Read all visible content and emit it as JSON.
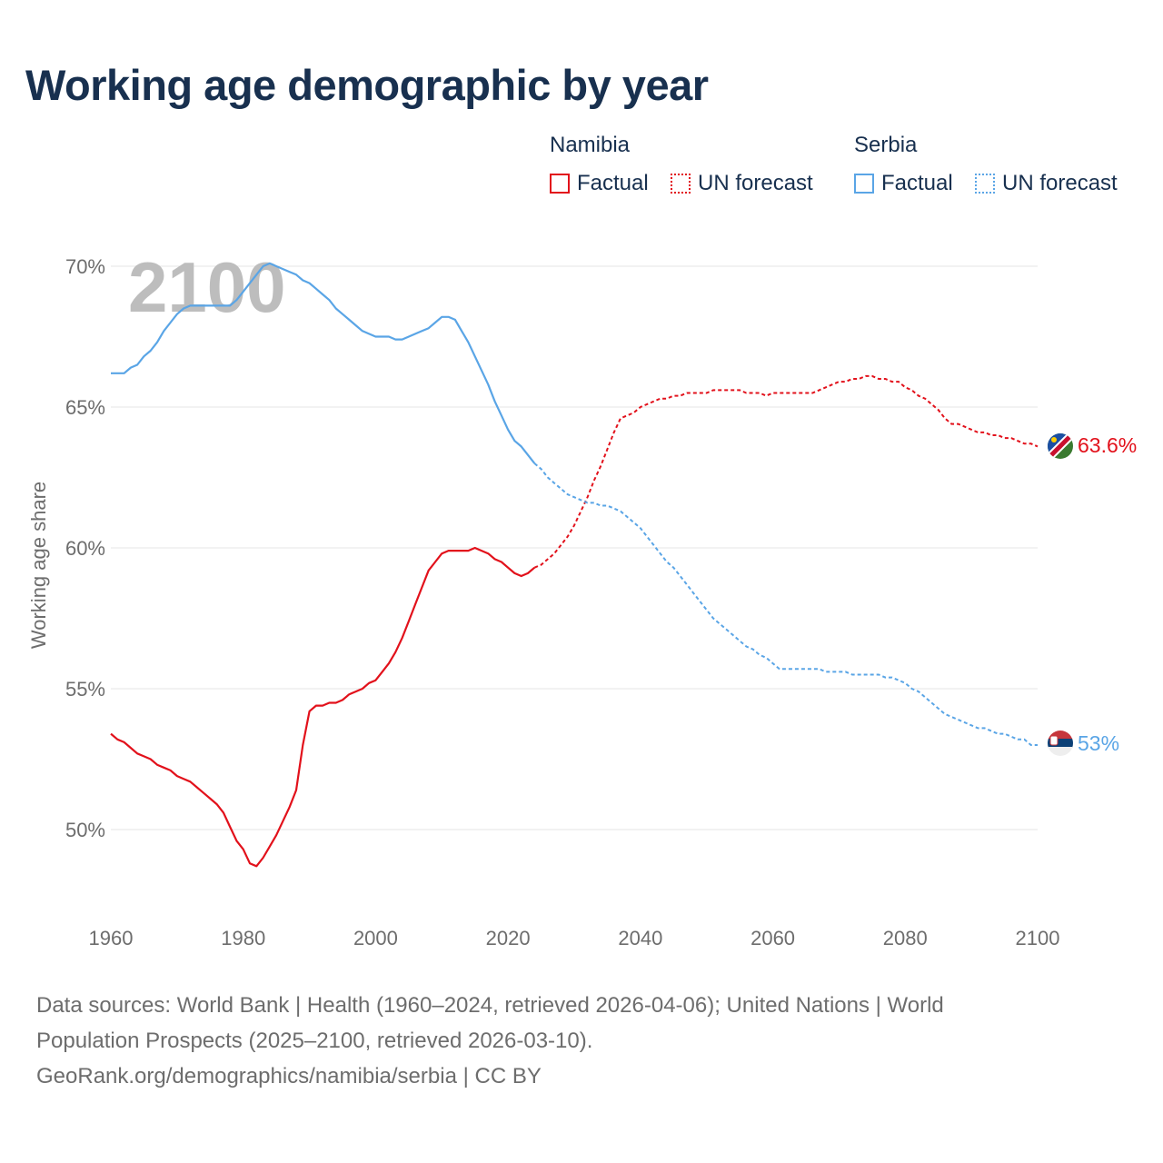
{
  "title": "Working age demographic by year",
  "year_watermark": "2100",
  "legend": {
    "groups": [
      {
        "name": "Namibia",
        "factual": "Factual",
        "forecast": "UN forecast",
        "color": "#e2111b"
      },
      {
        "name": "Serbia",
        "factual": "Factual",
        "forecast": "UN forecast",
        "color": "#5aa5e6"
      }
    ]
  },
  "end_labels": {
    "namibia": "63.6%",
    "serbia": "53%"
  },
  "source": {
    "line1": "Data sources: World Bank | Health (1960–2024, retrieved 2026-04-06); United Nations | World",
    "line2": "Population Prospects (2025–2100, retrieved 2026-03-10).",
    "line3": "GeoRank.org/demographics/namibia/serbia | CC BY"
  },
  "chart_data": {
    "type": "line",
    "title": "Working age demographic by year",
    "ylabel": "Working age share",
    "xlabel": "",
    "xlim": [
      1960,
      2100
    ],
    "ylim": [
      47,
      71.5
    ],
    "x_ticks": [
      1960,
      1980,
      2000,
      2020,
      2040,
      2060,
      2080,
      2100
    ],
    "y_ticks": [
      {
        "value": 50,
        "label": "50%"
      },
      {
        "value": 55,
        "label": "55%"
      },
      {
        "value": 60,
        "label": "60%"
      },
      {
        "value": 65,
        "label": "65%"
      },
      {
        "value": 70,
        "label": "70%"
      }
    ],
    "factual_end_year": 2024,
    "series": [
      {
        "name": "Namibia",
        "color": "#e2111b",
        "points": [
          [
            1960,
            53.4
          ],
          [
            1961,
            53.2
          ],
          [
            1962,
            53.1
          ],
          [
            1963,
            52.9
          ],
          [
            1964,
            52.7
          ],
          [
            1965,
            52.6
          ],
          [
            1966,
            52.5
          ],
          [
            1967,
            52.3
          ],
          [
            1968,
            52.2
          ],
          [
            1969,
            52.1
          ],
          [
            1970,
            51.9
          ],
          [
            1971,
            51.8
          ],
          [
            1972,
            51.7
          ],
          [
            1973,
            51.5
          ],
          [
            1974,
            51.3
          ],
          [
            1975,
            51.1
          ],
          [
            1976,
            50.9
          ],
          [
            1977,
            50.6
          ],
          [
            1978,
            50.1
          ],
          [
            1979,
            49.6
          ],
          [
            1980,
            49.3
          ],
          [
            1981,
            48.8
          ],
          [
            1982,
            48.7
          ],
          [
            1983,
            49.0
          ],
          [
            1984,
            49.4
          ],
          [
            1985,
            49.8
          ],
          [
            1986,
            50.3
          ],
          [
            1987,
            50.8
          ],
          [
            1988,
            51.4
          ],
          [
            1989,
            53.0
          ],
          [
            1990,
            54.2
          ],
          [
            1991,
            54.4
          ],
          [
            1992,
            54.4
          ],
          [
            1993,
            54.5
          ],
          [
            1994,
            54.5
          ],
          [
            1995,
            54.6
          ],
          [
            1996,
            54.8
          ],
          [
            1997,
            54.9
          ],
          [
            1998,
            55.0
          ],
          [
            1999,
            55.2
          ],
          [
            2000,
            55.3
          ],
          [
            2001,
            55.6
          ],
          [
            2002,
            55.9
          ],
          [
            2003,
            56.3
          ],
          [
            2004,
            56.8
          ],
          [
            2005,
            57.4
          ],
          [
            2006,
            58.0
          ],
          [
            2007,
            58.6
          ],
          [
            2008,
            59.2
          ],
          [
            2009,
            59.5
          ],
          [
            2010,
            59.8
          ],
          [
            2011,
            59.9
          ],
          [
            2012,
            59.9
          ],
          [
            2013,
            59.9
          ],
          [
            2014,
            59.9
          ],
          [
            2015,
            60.0
          ],
          [
            2016,
            59.9
          ],
          [
            2017,
            59.8
          ],
          [
            2018,
            59.6
          ],
          [
            2019,
            59.5
          ],
          [
            2020,
            59.3
          ],
          [
            2021,
            59.1
          ],
          [
            2022,
            59.0
          ],
          [
            2023,
            59.1
          ],
          [
            2024,
            59.3
          ],
          [
            2025,
            59.4
          ],
          [
            2026,
            59.6
          ],
          [
            2027,
            59.8
          ],
          [
            2028,
            60.1
          ],
          [
            2029,
            60.4
          ],
          [
            2030,
            60.8
          ],
          [
            2031,
            61.3
          ],
          [
            2032,
            61.8
          ],
          [
            2033,
            62.4
          ],
          [
            2034,
            62.9
          ],
          [
            2035,
            63.5
          ],
          [
            2036,
            64.1
          ],
          [
            2037,
            64.6
          ],
          [
            2038,
            64.7
          ],
          [
            2039,
            64.8
          ],
          [
            2040,
            65.0
          ],
          [
            2041,
            65.1
          ],
          [
            2042,
            65.2
          ],
          [
            2043,
            65.3
          ],
          [
            2044,
            65.3
          ],
          [
            2045,
            65.4
          ],
          [
            2046,
            65.4
          ],
          [
            2047,
            65.5
          ],
          [
            2048,
            65.5
          ],
          [
            2049,
            65.5
          ],
          [
            2050,
            65.5
          ],
          [
            2051,
            65.6
          ],
          [
            2052,
            65.6
          ],
          [
            2053,
            65.6
          ],
          [
            2054,
            65.6
          ],
          [
            2055,
            65.6
          ],
          [
            2056,
            65.5
          ],
          [
            2057,
            65.5
          ],
          [
            2058,
            65.5
          ],
          [
            2059,
            65.4
          ],
          [
            2060,
            65.5
          ],
          [
            2061,
            65.5
          ],
          [
            2062,
            65.5
          ],
          [
            2063,
            65.5
          ],
          [
            2064,
            65.5
          ],
          [
            2065,
            65.5
          ],
          [
            2066,
            65.5
          ],
          [
            2067,
            65.6
          ],
          [
            2068,
            65.7
          ],
          [
            2069,
            65.8
          ],
          [
            2070,
            65.9
          ],
          [
            2071,
            65.9
          ],
          [
            2072,
            66.0
          ],
          [
            2073,
            66.0
          ],
          [
            2074,
            66.1
          ],
          [
            2075,
            66.1
          ],
          [
            2076,
            66.0
          ],
          [
            2077,
            66.0
          ],
          [
            2078,
            65.9
          ],
          [
            2079,
            65.9
          ],
          [
            2080,
            65.7
          ],
          [
            2081,
            65.6
          ],
          [
            2082,
            65.4
          ],
          [
            2083,
            65.3
          ],
          [
            2084,
            65.1
          ],
          [
            2085,
            64.9
          ],
          [
            2086,
            64.6
          ],
          [
            2087,
            64.4
          ],
          [
            2088,
            64.4
          ],
          [
            2089,
            64.3
          ],
          [
            2090,
            64.2
          ],
          [
            2091,
            64.1
          ],
          [
            2092,
            64.1
          ],
          [
            2093,
            64.0
          ],
          [
            2094,
            64.0
          ],
          [
            2095,
            63.9
          ],
          [
            2096,
            63.9
          ],
          [
            2097,
            63.8
          ],
          [
            2098,
            63.7
          ],
          [
            2099,
            63.7
          ],
          [
            2100,
            63.6
          ]
        ]
      },
      {
        "name": "Serbia",
        "color": "#5aa5e6",
        "points": [
          [
            1960,
            66.2
          ],
          [
            1961,
            66.2
          ],
          [
            1962,
            66.2
          ],
          [
            1963,
            66.4
          ],
          [
            1964,
            66.5
          ],
          [
            1965,
            66.8
          ],
          [
            1966,
            67.0
          ],
          [
            1967,
            67.3
          ],
          [
            1968,
            67.7
          ],
          [
            1969,
            68.0
          ],
          [
            1970,
            68.3
          ],
          [
            1971,
            68.5
          ],
          [
            1972,
            68.6
          ],
          [
            1973,
            68.6
          ],
          [
            1974,
            68.6
          ],
          [
            1975,
            68.6
          ],
          [
            1976,
            68.6
          ],
          [
            1977,
            68.6
          ],
          [
            1978,
            68.6
          ],
          [
            1979,
            68.8
          ],
          [
            1980,
            69.1
          ],
          [
            1981,
            69.4
          ],
          [
            1982,
            69.7
          ],
          [
            1983,
            70.0
          ],
          [
            1984,
            70.1
          ],
          [
            1985,
            70.0
          ],
          [
            1986,
            69.9
          ],
          [
            1987,
            69.8
          ],
          [
            1988,
            69.7
          ],
          [
            1989,
            69.5
          ],
          [
            1990,
            69.4
          ],
          [
            1991,
            69.2
          ],
          [
            1992,
            69.0
          ],
          [
            1993,
            68.8
          ],
          [
            1994,
            68.5
          ],
          [
            1995,
            68.3
          ],
          [
            1996,
            68.1
          ],
          [
            1997,
            67.9
          ],
          [
            1998,
            67.7
          ],
          [
            1999,
            67.6
          ],
          [
            2000,
            67.5
          ],
          [
            2001,
            67.5
          ],
          [
            2002,
            67.5
          ],
          [
            2003,
            67.4
          ],
          [
            2004,
            67.4
          ],
          [
            2005,
            67.5
          ],
          [
            2006,
            67.6
          ],
          [
            2007,
            67.7
          ],
          [
            2008,
            67.8
          ],
          [
            2009,
            68.0
          ],
          [
            2010,
            68.2
          ],
          [
            2011,
            68.2
          ],
          [
            2012,
            68.1
          ],
          [
            2013,
            67.7
          ],
          [
            2014,
            67.3
          ],
          [
            2015,
            66.8
          ],
          [
            2016,
            66.3
          ],
          [
            2017,
            65.8
          ],
          [
            2018,
            65.2
          ],
          [
            2019,
            64.7
          ],
          [
            2020,
            64.2
          ],
          [
            2021,
            63.8
          ],
          [
            2022,
            63.6
          ],
          [
            2023,
            63.3
          ],
          [
            2024,
            63.0
          ],
          [
            2025,
            62.8
          ],
          [
            2026,
            62.5
          ],
          [
            2027,
            62.3
          ],
          [
            2028,
            62.1
          ],
          [
            2029,
            61.9
          ],
          [
            2030,
            61.8
          ],
          [
            2031,
            61.7
          ],
          [
            2032,
            61.6
          ],
          [
            2033,
            61.6
          ],
          [
            2034,
            61.5
          ],
          [
            2035,
            61.5
          ],
          [
            2036,
            61.4
          ],
          [
            2037,
            61.3
          ],
          [
            2038,
            61.1
          ],
          [
            2039,
            60.9
          ],
          [
            2040,
            60.7
          ],
          [
            2041,
            60.4
          ],
          [
            2042,
            60.1
          ],
          [
            2043,
            59.8
          ],
          [
            2044,
            59.5
          ],
          [
            2045,
            59.3
          ],
          [
            2046,
            59.0
          ],
          [
            2047,
            58.7
          ],
          [
            2048,
            58.4
          ],
          [
            2049,
            58.1
          ],
          [
            2050,
            57.8
          ],
          [
            2051,
            57.5
          ],
          [
            2052,
            57.3
          ],
          [
            2053,
            57.1
          ],
          [
            2054,
            56.9
          ],
          [
            2055,
            56.7
          ],
          [
            2056,
            56.5
          ],
          [
            2057,
            56.4
          ],
          [
            2058,
            56.2
          ],
          [
            2059,
            56.1
          ],
          [
            2060,
            55.9
          ],
          [
            2061,
            55.7
          ],
          [
            2062,
            55.7
          ],
          [
            2063,
            55.7
          ],
          [
            2064,
            55.7
          ],
          [
            2065,
            55.7
          ],
          [
            2066,
            55.7
          ],
          [
            2067,
            55.7
          ],
          [
            2068,
            55.6
          ],
          [
            2069,
            55.6
          ],
          [
            2070,
            55.6
          ],
          [
            2071,
            55.6
          ],
          [
            2072,
            55.5
          ],
          [
            2073,
            55.5
          ],
          [
            2074,
            55.5
          ],
          [
            2075,
            55.5
          ],
          [
            2076,
            55.5
          ],
          [
            2077,
            55.4
          ],
          [
            2078,
            55.4
          ],
          [
            2079,
            55.3
          ],
          [
            2080,
            55.2
          ],
          [
            2081,
            55.0
          ],
          [
            2082,
            54.9
          ],
          [
            2083,
            54.7
          ],
          [
            2084,
            54.5
          ],
          [
            2085,
            54.3
          ],
          [
            2086,
            54.1
          ],
          [
            2087,
            54.0
          ],
          [
            2088,
            53.9
          ],
          [
            2089,
            53.8
          ],
          [
            2090,
            53.7
          ],
          [
            2091,
            53.6
          ],
          [
            2092,
            53.6
          ],
          [
            2093,
            53.5
          ],
          [
            2094,
            53.4
          ],
          [
            2095,
            53.4
          ],
          [
            2096,
            53.3
          ],
          [
            2097,
            53.2
          ],
          [
            2098,
            53.2
          ],
          [
            2099,
            53.0
          ],
          [
            2100,
            53.0
          ]
        ]
      }
    ]
  }
}
